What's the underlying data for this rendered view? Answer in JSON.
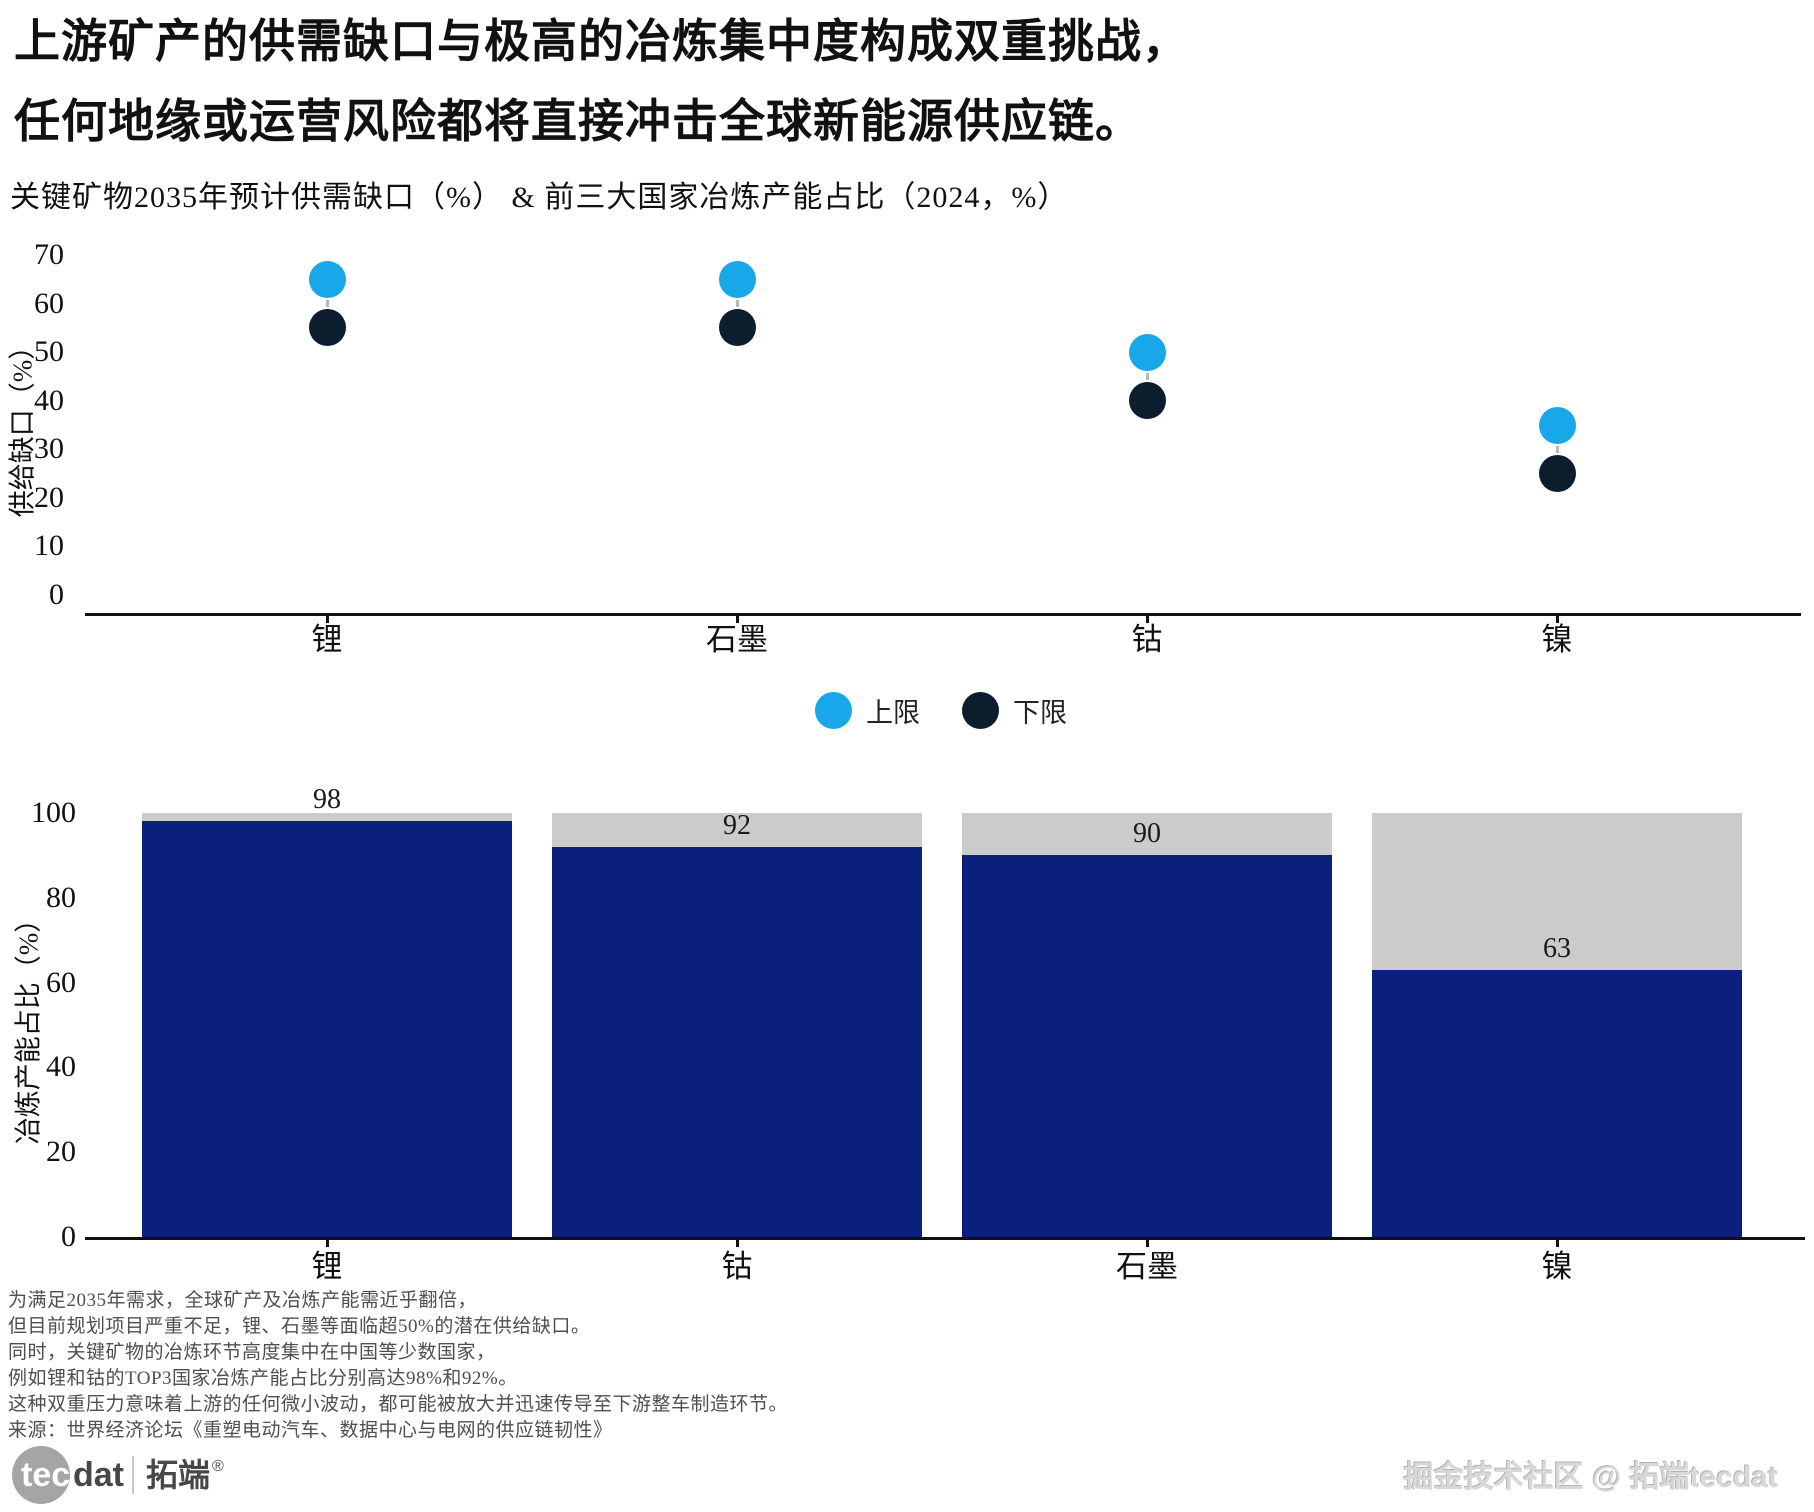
{
  "title": {
    "line1": "上游矿产的供需缺口与极高的冶炼集中度构成双重挑战，",
    "line2": "任何地缘或运营风险都将直接冲击全球新能源供应链。"
  },
  "subtitle": "关键矿物2035年预计供需缺口（%） & 前三大国家冶炼产能占比（2024，%）",
  "chart_data": [
    {
      "type": "scatter",
      "categories": [
        "锂",
        "石墨",
        "钴",
        "镍"
      ],
      "series": [
        {
          "name": "上限",
          "color": "#18a7e8",
          "values": [
            65,
            65,
            50,
            35
          ]
        },
        {
          "name": "下限",
          "color": "#0c1e2e",
          "values": [
            55,
            55,
            40,
            25
          ]
        }
      ],
      "ylabel": "供给缺口（%）",
      "ylim": [
        0,
        70
      ],
      "yticks": [
        0,
        10,
        20,
        30,
        40,
        50,
        60,
        70
      ],
      "grid": false,
      "legend_position": "bottom"
    },
    {
      "type": "bar",
      "categories": [
        "锂",
        "钴",
        "石墨",
        "镍"
      ],
      "values": [
        98,
        92,
        90,
        63
      ],
      "background_value": 100,
      "bar_color": "#0b1f7d",
      "bar_bg_color": "#cbcbcb",
      "ylabel": "冶炼产能占比（%）",
      "ylim": [
        0,
        100
      ],
      "yticks": [
        0,
        20,
        40,
        60,
        80,
        100
      ],
      "grid": false
    }
  ],
  "legend": {
    "items": [
      {
        "label": "上限",
        "color": "#18a7e8"
      },
      {
        "label": "下限",
        "color": "#0c1e2e"
      }
    ]
  },
  "footnotes": [
    "为满足2035年需求，全球矿产及冶炼产能需近乎翻倍，",
    "但目前规划项目严重不足，锂、石墨等面临超50%的潜在供给缺口。",
    "同时，关键矿物的冶炼环节高度集中在中国等少数国家，",
    "例如锂和钴的TOP3国家冶炼产能占比分别高达98%和92%。",
    "这种双重压力意味着上游的任何微小波动，都可能被放大并迅速传导至下游整车制造环节。",
    "来源：世界经济论坛《重塑电动汽车、数据中心与电网的供应链韧性》"
  ],
  "footer": {
    "logo": {
      "tec": "tec",
      "dat": "dat",
      "brand": "拓端",
      "reg": "®"
    },
    "watermark": "掘金技术社区 @ 拓端tecdat"
  }
}
